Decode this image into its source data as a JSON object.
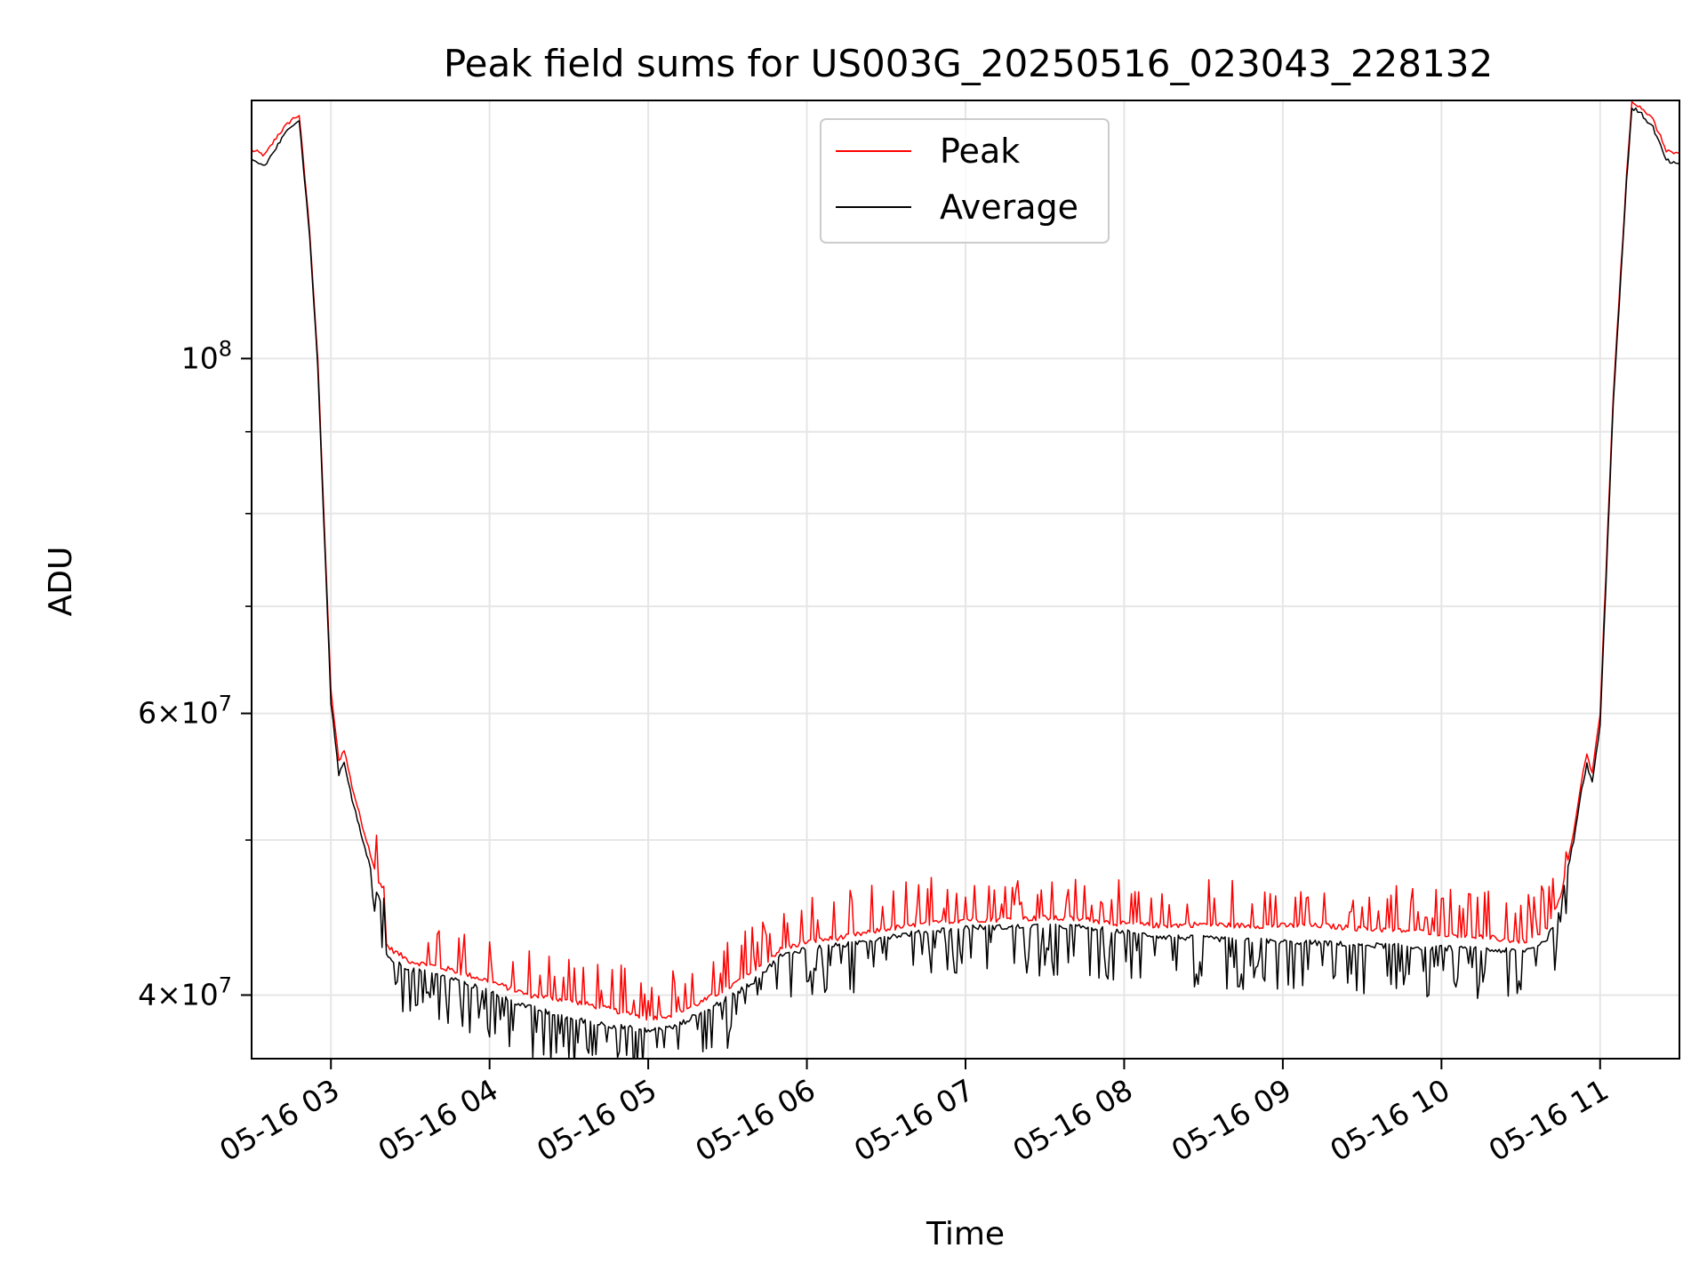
{
  "chart_data": {
    "type": "line",
    "title": "Peak field sums for US003G_20250516_023043_228132",
    "xlabel": "Time",
    "ylabel": "ADU",
    "yscale": "log",
    "xlim": [
      "2025-05-16 02:30",
      "2025-05-16 11:30"
    ],
    "ylim": [
      36500000,
      145000000
    ],
    "grid": true,
    "legend_position": "top-center",
    "x_ticks": [
      {
        "value": "2025-05-16 03:00",
        "label": "05-16 03"
      },
      {
        "value": "2025-05-16 04:00",
        "label": "05-16 04"
      },
      {
        "value": "2025-05-16 05:00",
        "label": "05-16 05"
      },
      {
        "value": "2025-05-16 06:00",
        "label": "05-16 06"
      },
      {
        "value": "2025-05-16 07:00",
        "label": "05-16 07"
      },
      {
        "value": "2025-05-16 08:00",
        "label": "05-16 08"
      },
      {
        "value": "2025-05-16 09:00",
        "label": "05-16 09"
      },
      {
        "value": "2025-05-16 10:00",
        "label": "05-16 10"
      },
      {
        "value": "2025-05-16 11:00",
        "label": "05-16 11"
      }
    ],
    "y_major_ticks": [
      {
        "value": 40000000,
        "mantissa": "4",
        "exponent": "7"
      },
      {
        "value": 60000000,
        "mantissa": "6",
        "exponent": "7"
      },
      {
        "value": 100000000,
        "mantissa": "",
        "exponent": "8"
      }
    ],
    "y_minor_ticks": [
      50000000,
      70000000,
      80000000,
      90000000
    ],
    "series": [
      {
        "name": "Peak",
        "color": "#ff0000",
        "x": [
          "2025-05-16 02:30",
          "2025-05-16 02:35",
          "2025-05-16 02:40",
          "2025-05-16 02:45",
          "2025-05-16 02:48",
          "2025-05-16 02:52",
          "2025-05-16 02:55",
          "2025-05-16 02:58",
          "2025-05-16 03:00",
          "2025-05-16 03:03",
          "2025-05-16 03:05",
          "2025-05-16 03:08",
          "2025-05-16 03:12",
          "2025-05-16 03:15",
          "2025-05-16 03:18",
          "2025-05-16 03:20",
          "2025-05-16 03:21",
          "2025-05-16 03:23",
          "2025-05-16 03:30",
          "2025-05-16 03:45",
          "2025-05-16 04:00",
          "2025-05-16 04:15",
          "2025-05-16 04:30",
          "2025-05-16 04:45",
          "2025-05-16 05:00",
          "2025-05-16 05:10",
          "2025-05-16 05:20",
          "2025-05-16 05:30",
          "2025-05-16 05:40",
          "2025-05-16 05:50",
          "2025-05-16 06:00",
          "2025-05-16 06:15",
          "2025-05-16 06:30",
          "2025-05-16 06:45",
          "2025-05-16 07:00",
          "2025-05-16 07:15",
          "2025-05-16 07:30",
          "2025-05-16 07:45",
          "2025-05-16 08:00",
          "2025-05-16 08:15",
          "2025-05-16 08:30",
          "2025-05-16 08:45",
          "2025-05-16 09:00",
          "2025-05-16 09:15",
          "2025-05-16 09:30",
          "2025-05-16 09:45",
          "2025-05-16 10:00",
          "2025-05-16 10:15",
          "2025-05-16 10:30",
          "2025-05-16 10:35",
          "2025-05-16 10:40",
          "2025-05-16 10:45",
          "2025-05-16 10:50",
          "2025-05-16 10:53",
          "2025-05-16 10:55",
          "2025-05-16 10:57",
          "2025-05-16 11:00",
          "2025-05-16 11:05",
          "2025-05-16 11:10",
          "2025-05-16 11:12",
          "2025-05-16 11:15",
          "2025-05-16 11:20",
          "2025-05-16 11:25",
          "2025-05-16 11:30"
        ],
        "values": [
          135000000,
          134000000,
          138000000,
          141000000,
          142000000,
          120000000,
          100000000,
          75000000,
          62000000,
          56000000,
          57000000,
          54000000,
          51000000,
          49000000,
          47000000,
          46800000,
          43000000,
          42700000,
          42000000,
          41500000,
          40800000,
          40000000,
          39700000,
          39200000,
          38700000,
          38900000,
          39600000,
          40400000,
          41400000,
          42700000,
          43200000,
          43500000,
          44000000,
          44300000,
          44600000,
          44600000,
          44700000,
          44600000,
          44300000,
          44200000,
          44300000,
          44200000,
          44200000,
          44200000,
          44000000,
          43900000,
          43700000,
          43500000,
          43200000,
          43400000,
          44000000,
          46000000,
          50500000,
          54500000,
          56500000,
          55000000,
          60000000,
          95000000,
          130000000,
          144500000,
          144000000,
          141000000,
          135000000,
          134000000
        ]
      },
      {
        "name": "Average",
        "color": "#000000",
        "x": [
          "2025-05-16 02:30",
          "2025-05-16 02:35",
          "2025-05-16 02:40",
          "2025-05-16 02:45",
          "2025-05-16 02:48",
          "2025-05-16 02:52",
          "2025-05-16 02:55",
          "2025-05-16 02:58",
          "2025-05-16 03:00",
          "2025-05-16 03:03",
          "2025-05-16 03:05",
          "2025-05-16 03:08",
          "2025-05-16 03:12",
          "2025-05-16 03:15",
          "2025-05-16 03:18",
          "2025-05-16 03:20",
          "2025-05-16 03:21",
          "2025-05-16 03:23",
          "2025-05-16 03:30",
          "2025-05-16 03:45",
          "2025-05-16 04:00",
          "2025-05-16 04:15",
          "2025-05-16 04:30",
          "2025-05-16 04:45",
          "2025-05-16 05:00",
          "2025-05-16 05:10",
          "2025-05-16 05:20",
          "2025-05-16 05:30",
          "2025-05-16 05:40",
          "2025-05-16 05:50",
          "2025-05-16 06:00",
          "2025-05-16 06:15",
          "2025-05-16 06:30",
          "2025-05-16 06:45",
          "2025-05-16 07:00",
          "2025-05-16 07:15",
          "2025-05-16 07:30",
          "2025-05-16 07:45",
          "2025-05-16 08:00",
          "2025-05-16 08:15",
          "2025-05-16 08:30",
          "2025-05-16 08:45",
          "2025-05-16 09:00",
          "2025-05-16 09:15",
          "2025-05-16 09:30",
          "2025-05-16 09:45",
          "2025-05-16 10:00",
          "2025-05-16 10:15",
          "2025-05-16 10:30",
          "2025-05-16 10:35",
          "2025-05-16 10:40",
          "2025-05-16 10:45",
          "2025-05-16 10:50",
          "2025-05-16 10:53",
          "2025-05-16 10:55",
          "2025-05-16 10:57",
          "2025-05-16 11:00",
          "2025-05-16 11:05",
          "2025-05-16 11:10",
          "2025-05-16 11:12",
          "2025-05-16 11:15",
          "2025-05-16 11:20",
          "2025-05-16 11:25",
          "2025-05-16 11:30"
        ],
        "values": [
          133000000,
          132000000,
          136000000,
          140000000,
          141000000,
          119000000,
          99000000,
          74000000,
          61000000,
          55000000,
          56000000,
          53000000,
          50000000,
          48000000,
          46000000,
          45800000,
          42500000,
          42100000,
          41500000,
          41000000,
          40200000,
          39300000,
          38700000,
          38300000,
          38000000,
          38200000,
          39000000,
          39800000,
          40800000,
          42300000,
          42800000,
          43000000,
          43500000,
          43800000,
          44100000,
          44100000,
          44200000,
          44100000,
          43800000,
          43500000,
          43400000,
          43300000,
          43200000,
          43100000,
          43000000,
          42900000,
          42800000,
          42700000,
          42600000,
          42800000,
          43400000,
          45400000,
          50000000,
          53800000,
          55800000,
          54300000,
          59000000,
          94000000,
          129000000,
          143500000,
          142500000,
          139500000,
          133000000,
          132000000
        ]
      }
    ]
  }
}
